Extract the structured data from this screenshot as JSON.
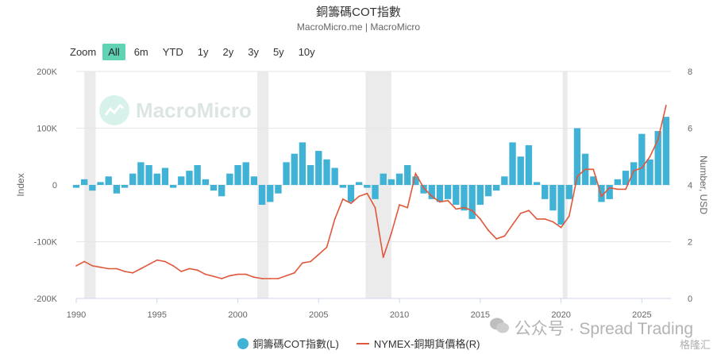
{
  "header": {
    "title": "銅籌碼COT指數",
    "subtitle": "MacroMicro.me | MacroMicro"
  },
  "zoom": {
    "label": "Zoom",
    "buttons": [
      "All",
      "6m",
      "YTD",
      "1y",
      "2y",
      "3y",
      "5y",
      "10y"
    ],
    "active": "All"
  },
  "watermark": {
    "text": "MacroMicro",
    "credit": "公众号 · Spread Trading",
    "credit_small": "格隆汇"
  },
  "colors": {
    "cot": "#3fb2d6",
    "price": "#e0573a",
    "recession": "#ebebeb",
    "grid": "#e6e6e6"
  },
  "chart_data": {
    "type": "area",
    "title": "銅籌碼COT指數",
    "subtitle": "MacroMicro.me | MacroMicro",
    "xlabel": "",
    "x_ticks": [
      "1990",
      "1995",
      "2000",
      "2005",
      "2010",
      "2015",
      "2020",
      "2025"
    ],
    "xlim": [
      1990,
      2026.8
    ],
    "left_axis": {
      "label": "Index",
      "ticks": [
        "200K",
        "100K",
        "0",
        "-100K",
        "-200K"
      ],
      "ylim": [
        -200000,
        200000
      ]
    },
    "right_axis": {
      "label": "Number, USD",
      "ticks": [
        "8",
        "6",
        "4",
        "2",
        "0"
      ],
      "ylim": [
        0,
        8
      ]
    },
    "legend": [
      "銅籌碼COT指數(L)",
      "NYMEX-銅期貨價格(R)"
    ],
    "legend_position": "bottom",
    "recession_bands": [
      [
        1990.5,
        1991.2
      ],
      [
        2001.2,
        2001.9
      ],
      [
        2007.9,
        2009.5
      ],
      [
        2020.1,
        2020.4
      ]
    ],
    "series": [
      {
        "name": "銅籌碼COT指數(L)",
        "axis": "left",
        "type": "area",
        "x": [
          1990.0,
          1990.5,
          1991.0,
          1991.5,
          1992.0,
          1992.5,
          1993.0,
          1993.5,
          1994.0,
          1994.5,
          1995.0,
          1995.5,
          1996.0,
          1996.5,
          1997.0,
          1997.5,
          1998.0,
          1998.5,
          1999.0,
          1999.5,
          2000.0,
          2000.5,
          2001.0,
          2001.5,
          2002.0,
          2002.5,
          2003.0,
          2003.5,
          2004.0,
          2004.5,
          2005.0,
          2005.5,
          2006.0,
          2006.5,
          2007.0,
          2007.5,
          2008.0,
          2008.5,
          2009.0,
          2009.5,
          2010.0,
          2010.5,
          2011.0,
          2011.5,
          2012.0,
          2012.5,
          2013.0,
          2013.5,
          2014.0,
          2014.5,
          2015.0,
          2015.5,
          2016.0,
          2016.5,
          2017.0,
          2017.5,
          2018.0,
          2018.5,
          2019.0,
          2019.5,
          2020.0,
          2020.5,
          2021.0,
          2021.5,
          2022.0,
          2022.5,
          2023.0,
          2023.5,
          2024.0,
          2024.5,
          2025.0,
          2025.5,
          2026.0,
          2026.5
        ],
        "values": [
          -5000,
          10000,
          -10000,
          5000,
          15000,
          -15000,
          -5000,
          20000,
          40000,
          35000,
          20000,
          30000,
          -5000,
          15000,
          25000,
          35000,
          10000,
          -10000,
          -20000,
          20000,
          35000,
          40000,
          15000,
          -35000,
          -30000,
          -15000,
          40000,
          55000,
          75000,
          35000,
          60000,
          45000,
          30000,
          -5000,
          -30000,
          5000,
          -5000,
          -25000,
          20000,
          10000,
          20000,
          35000,
          15000,
          -15000,
          -25000,
          -30000,
          -25000,
          -35000,
          -45000,
          -60000,
          -35000,
          -20000,
          -10000,
          15000,
          75000,
          50000,
          70000,
          5000,
          -25000,
          -45000,
          -70000,
          -25000,
          100000,
          55000,
          15000,
          -30000,
          -25000,
          10000,
          25000,
          40000,
          90000,
          45000,
          95000,
          120000
        ]
      },
      {
        "name": "NYMEX-銅期貨價格(R)",
        "axis": "right",
        "type": "line",
        "x": [
          1990.0,
          1990.5,
          1991.0,
          1991.5,
          1992.0,
          1992.5,
          1993.0,
          1993.5,
          1994.0,
          1994.5,
          1995.0,
          1995.5,
          1996.0,
          1996.5,
          1997.0,
          1997.5,
          1998.0,
          1998.5,
          1999.0,
          1999.5,
          2000.0,
          2000.5,
          2001.0,
          2001.5,
          2002.0,
          2002.5,
          2003.0,
          2003.5,
          2004.0,
          2004.5,
          2005.0,
          2005.5,
          2006.0,
          2006.5,
          2007.0,
          2007.5,
          2008.0,
          2008.5,
          2009.0,
          2009.5,
          2010.0,
          2010.5,
          2011.0,
          2011.5,
          2012.0,
          2012.5,
          2013.0,
          2013.5,
          2014.0,
          2014.5,
          2015.0,
          2015.5,
          2016.0,
          2016.5,
          2017.0,
          2017.5,
          2018.0,
          2018.5,
          2019.0,
          2019.5,
          2020.0,
          2020.5,
          2021.0,
          2021.5,
          2022.0,
          2022.5,
          2023.0,
          2023.5,
          2024.0,
          2024.5,
          2025.0,
          2025.5,
          2026.0,
          2026.5
        ],
        "values": [
          1.15,
          1.3,
          1.15,
          1.1,
          1.05,
          1.05,
          0.95,
          0.9,
          1.05,
          1.2,
          1.35,
          1.3,
          1.15,
          0.95,
          1.05,
          1.0,
          0.85,
          0.78,
          0.7,
          0.8,
          0.85,
          0.85,
          0.75,
          0.7,
          0.7,
          0.7,
          0.8,
          0.9,
          1.25,
          1.3,
          1.55,
          1.8,
          2.8,
          3.5,
          3.35,
          3.6,
          3.7,
          3.2,
          1.45,
          2.3,
          3.3,
          3.2,
          4.4,
          3.9,
          3.6,
          3.4,
          3.45,
          3.15,
          3.2,
          3.1,
          2.8,
          2.4,
          2.1,
          2.2,
          2.6,
          3.0,
          3.1,
          2.8,
          2.8,
          2.7,
          2.5,
          2.9,
          4.3,
          4.55,
          4.55,
          3.6,
          3.9,
          3.85,
          3.85,
          4.5,
          4.6,
          5.0,
          5.6,
          6.8
        ]
      }
    ]
  }
}
